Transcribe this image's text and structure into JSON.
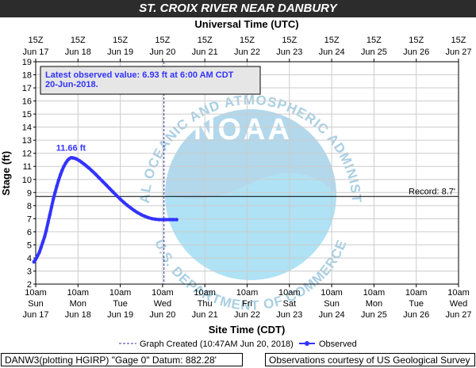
{
  "chart_data": {
    "type": "line",
    "title": "ST. CROIX RIVER NEAR DANBURY",
    "top_axis_title": "Universal Time (UTC)",
    "xlabel": "Site Time (CDT)",
    "ylabel": "Stage (ft)",
    "ylim": [
      2,
      19
    ],
    "yticks": [
      2,
      3,
      4,
      5,
      6,
      7,
      8,
      9,
      10,
      11,
      12,
      13,
      14,
      15,
      16,
      17,
      18,
      19
    ],
    "xlim_hours": [
      0,
      240
    ],
    "grid": true,
    "top_ticks": [
      {
        "time": "15Z",
        "date": "Jun 17"
      },
      {
        "time": "15Z",
        "date": "Jun 18"
      },
      {
        "time": "15Z",
        "date": "Jun 19"
      },
      {
        "time": "15Z",
        "date": "Jun 20"
      },
      {
        "time": "15Z",
        "date": "Jun 21"
      },
      {
        "time": "15Z",
        "date": "Jun 22"
      },
      {
        "time": "15Z",
        "date": "Jun 23"
      },
      {
        "time": "15Z",
        "date": "Jun 24"
      },
      {
        "time": "15Z",
        "date": "Jun 25"
      },
      {
        "time": "15Z",
        "date": "Jun 26"
      },
      {
        "time": "15Z",
        "date": "Jun 27"
      }
    ],
    "bottom_ticks": [
      {
        "time": "10am",
        "day": "Sun",
        "date": "Jun 17"
      },
      {
        "time": "10am",
        "day": "Mon",
        "date": "Jun 18"
      },
      {
        "time": "10am",
        "day": "Tue",
        "date": "Jun 19"
      },
      {
        "time": "10am",
        "day": "Wed",
        "date": "Jun 20"
      },
      {
        "time": "10am",
        "day": "Thu",
        "date": "Jun 21"
      },
      {
        "time": "10am",
        "day": "Fri",
        "date": "Jun 22"
      },
      {
        "time": "10am",
        "day": "Sat",
        "date": "Jun 23"
      },
      {
        "time": "10am",
        "day": "Sun",
        "date": "Jun 24"
      },
      {
        "time": "10am",
        "day": "Mon",
        "date": "Jun 25"
      },
      {
        "time": "10am",
        "day": "Tue",
        "date": "Jun 26"
      },
      {
        "time": "10am",
        "day": "Wed",
        "date": "Jun 27"
      }
    ],
    "series": [
      {
        "name": "Observed",
        "color": "#3333ff",
        "x_hours": [
          -1,
          0,
          1,
          2,
          3,
          4,
          5,
          6,
          7,
          8,
          9,
          10,
          11,
          12,
          13,
          14,
          15,
          16,
          17,
          18,
          19,
          20,
          21,
          22,
          23,
          24,
          25,
          26,
          27,
          28,
          29,
          30,
          32,
          34,
          36,
          38,
          40,
          42,
          44,
          46,
          48,
          50,
          52,
          54,
          56,
          58,
          60,
          62,
          64,
          66,
          68,
          70,
          72,
          74,
          76,
          78,
          80
        ],
        "y": [
          3.7,
          3.9,
          4.15,
          4.4,
          4.8,
          5.2,
          5.6,
          6.1,
          6.7,
          7.3,
          7.9,
          8.5,
          9.0,
          9.5,
          9.95,
          10.35,
          10.7,
          11.0,
          11.25,
          11.45,
          11.58,
          11.66,
          11.65,
          11.62,
          11.57,
          11.5,
          11.42,
          11.32,
          11.22,
          11.12,
          11.0,
          10.9,
          10.65,
          10.4,
          10.12,
          9.85,
          9.58,
          9.3,
          9.03,
          8.76,
          8.5,
          8.25,
          8.02,
          7.82,
          7.62,
          7.45,
          7.3,
          7.18,
          7.08,
          7.0,
          6.96,
          6.93,
          6.93,
          6.93,
          6.93,
          6.93,
          6.93
        ]
      }
    ],
    "peak_label": {
      "text": "11.66 ft",
      "x_hours": 20,
      "y": 11.66
    },
    "record": {
      "value": 8.7,
      "label": "Record: 8.7'"
    },
    "graph_created_x_hours": 72.8,
    "latest_observed": "Latest observed value: 6.93 ft at 6:00 AM CDT 20-Jun-2018.",
    "legend": {
      "graph_created": "Graph Created (10:47AM Jun 20, 2018)",
      "observed": "Observed"
    }
  },
  "footer": {
    "left": "DANW3(plotting HGIRP) \"Gage 0\" Datum: 882.28'",
    "right": "Observations courtesy of US Geological Survey"
  },
  "watermark": {
    "logo_text": "NOAA",
    "ring_text": "NATIONAL OCEANIC AND ATMOSPHERIC ADMINISTRATION",
    "bottom_text": "U.S. DEPARTMENT OF COMMERCE"
  },
  "colors": {
    "series": "#3333ff",
    "title_bar": "#2c2c2c",
    "grid": "#cccccc",
    "record_line": "#000000",
    "created_line": "#333399",
    "watermark_light": "#bfe6f5",
    "watermark_dark": "#9ccfe8"
  }
}
